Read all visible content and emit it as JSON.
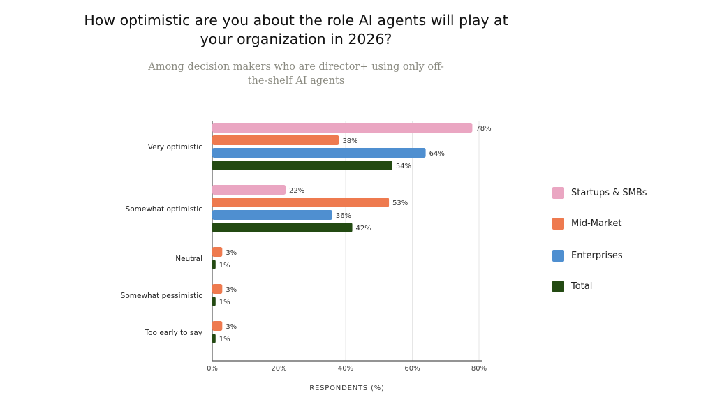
{
  "title": "How optimistic are you about the role AI agents will play at your organization in 2026?",
  "subtitle": "Among decision makers who are director+ using only off-the-shelf AI agents",
  "chart_data": {
    "type": "bar",
    "orientation": "horizontal",
    "categories": [
      "Very optimistic",
      "Somewhat optimistic",
      "Neutral",
      "Somewhat pessimistic",
      "Too early to say"
    ],
    "series": [
      {
        "name": "Startups & SMBs",
        "color": "#eaa6c2",
        "values": [
          78,
          22,
          null,
          null,
          null
        ]
      },
      {
        "name": "Mid-Market",
        "color": "#ee7a4f",
        "values": [
          38,
          53,
          3,
          3,
          3
        ]
      },
      {
        "name": "Enterprises",
        "color": "#4f8fd0",
        "values": [
          64,
          36,
          null,
          null,
          null
        ]
      },
      {
        "name": "Total",
        "color": "#234a12",
        "values": [
          54,
          42,
          1,
          1,
          1
        ]
      }
    ],
    "xlabel": "RESPONDENTS (%)",
    "xlim": [
      0,
      80
    ],
    "xticks": [
      "0%",
      "20%",
      "40%",
      "60%",
      "80%"
    ],
    "grid": true,
    "legend": "right"
  }
}
